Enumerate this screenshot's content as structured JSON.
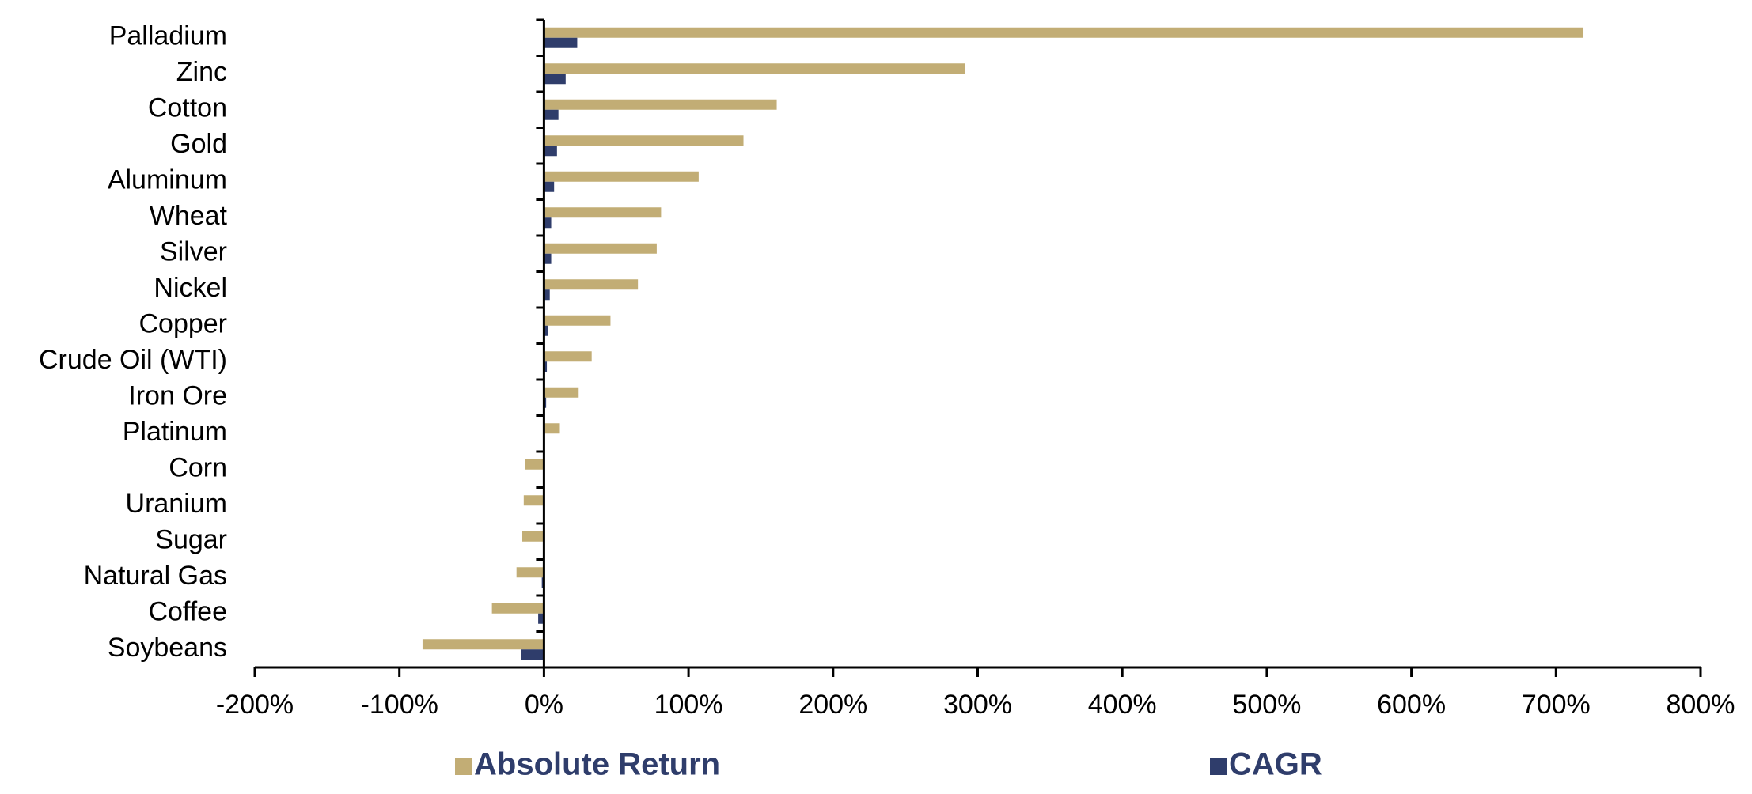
{
  "chart_data": {
    "type": "hbar",
    "categories": [
      "Palladium",
      "Zinc",
      "Cotton",
      "Gold",
      "Aluminum",
      "Wheat",
      "Silver",
      "Nickel",
      "Copper",
      "Crude Oil (WTI)",
      "Iron Ore",
      "Platinum",
      "Corn",
      "Uranium",
      "Sugar",
      "Natural Gas",
      "Coffee",
      "Soybeans"
    ],
    "series": [
      {
        "name": "Absolute Return",
        "color": "#c2ad75",
        "values": [
          719,
          291,
          161,
          138,
          107,
          81,
          78,
          65,
          46,
          33,
          24,
          11,
          -13,
          -14,
          -15,
          -19,
          -36,
          -84
        ]
      },
      {
        "name": "CAGR",
        "color": "#2f3d6b",
        "values": [
          23,
          15,
          10,
          9,
          7,
          5,
          5,
          4,
          3,
          2,
          1.5,
          0.5,
          -0.5,
          -0.5,
          -0.6,
          -1.5,
          -4,
          -16
        ]
      }
    ],
    "xlim": [
      -200,
      800
    ],
    "xticks": [
      {
        "value": -200,
        "label": "-200%"
      },
      {
        "value": -100,
        "label": "-100%"
      },
      {
        "value": 0,
        "label": "0%"
      },
      {
        "value": 100,
        "label": "100%"
      },
      {
        "value": 200,
        "label": "200%"
      },
      {
        "value": 300,
        "label": "300%"
      },
      {
        "value": 400,
        "label": "400%"
      },
      {
        "value": 500,
        "label": "500%"
      },
      {
        "value": 600,
        "label": "600%"
      },
      {
        "value": 700,
        "label": "700%"
      },
      {
        "value": 800,
        "label": "800%"
      }
    ],
    "legend": "bottom"
  }
}
